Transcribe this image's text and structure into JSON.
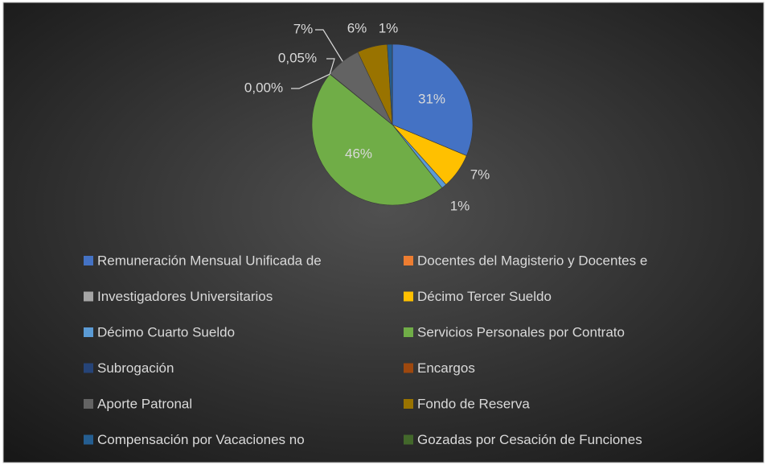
{
  "chart_data": {
    "type": "pie",
    "categories": [
      "Remuneración Mensual Unificada de",
      "Docentes del Magisterio y Docentes e",
      "Investigadores Universitarios",
      "Décimo Tercer Sueldo",
      "Décimo Cuarto Sueldo",
      "Servicios Personales por Contrato",
      "Subrogación",
      "Encargos",
      "Aporte Patronal",
      "Fondo de Reserva",
      "Compensación por Vacaciones no",
      "Gozadas por Cesación de Funciones"
    ],
    "values": [
      31,
      0,
      0,
      7,
      1,
      46,
      0,
      0.05,
      7,
      6,
      1,
      0
    ],
    "value_labels": [
      "31%",
      null,
      null,
      "7%",
      "1%",
      "46%",
      "0,00%",
      "0,05%",
      "7%",
      "6%",
      "1%",
      null
    ],
    "colors": [
      "#4472c4",
      "#ed7d31",
      "#a5a5a5",
      "#ffc000",
      "#5b9bd5",
      "#70ad47",
      "#264478",
      "#9e480e",
      "#636363",
      "#997300",
      "#255e91",
      "#43682b"
    ],
    "legend": "bottom"
  }
}
